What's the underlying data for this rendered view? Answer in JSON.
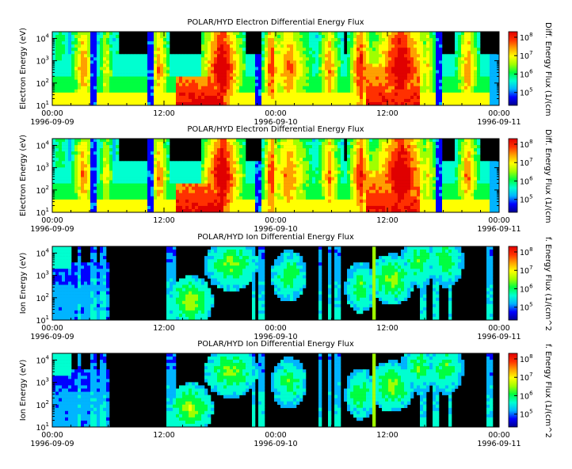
{
  "chart_data": [
    {
      "type": "heatmap",
      "title": "POLAR/HYD  Electron Differential Energy Flux",
      "ylabel": "Electron Energy (eV)",
      "colorbar_label": "Diff. Energy Flux (1/(cm",
      "y_scale": "log",
      "ylim": [
        10,
        20000
      ],
      "y_ticks": [
        {
          "base": "10",
          "exp": "1"
        },
        {
          "base": "10",
          "exp": "2"
        },
        {
          "base": "10",
          "exp": "3"
        },
        {
          "base": "10",
          "exp": "4"
        }
      ],
      "x_ticks": [
        {
          "time": "00:00",
          "date": "1996-09-09"
        },
        {
          "time": "12:00",
          "date": ""
        },
        {
          "time": "00:00",
          "date": "1996-09-10"
        },
        {
          "time": "12:00",
          "date": ""
        },
        {
          "time": "00:00",
          "date": "1996-09-11"
        }
      ],
      "colorbar_ticks": [
        {
          "base": "10",
          "exp": "5"
        },
        {
          "base": "10",
          "exp": "6"
        },
        {
          "base": "10",
          "exp": "7"
        },
        {
          "base": "10",
          "exp": "8"
        }
      ],
      "colorbar_range": [
        20000,
        200000000
      ],
      "colormap": [
        "#00008f",
        "#0000ff",
        "#00b4ff",
        "#00ffd0",
        "#00ff40",
        "#a0ff00",
        "#ffff00",
        "#ffa000",
        "#ff3000",
        "#e00000"
      ]
    },
    {
      "type": "heatmap",
      "title": "POLAR/HYD  Electron Differential Energy Flux",
      "ylabel": "Electron Energy (eV)",
      "colorbar_label": "Diff. Energy Flux (1/(cm",
      "y_scale": "log",
      "ylim": [
        10,
        20000
      ],
      "y_ticks": [
        {
          "base": "10",
          "exp": "1"
        },
        {
          "base": "10",
          "exp": "2"
        },
        {
          "base": "10",
          "exp": "3"
        },
        {
          "base": "10",
          "exp": "4"
        }
      ],
      "x_ticks": [
        {
          "time": "00:00",
          "date": "1996-09-09"
        },
        {
          "time": "12:00",
          "date": ""
        },
        {
          "time": "00:00",
          "date": "1996-09-10"
        },
        {
          "time": "12:00",
          "date": ""
        },
        {
          "time": "00:00",
          "date": "1996-09-11"
        }
      ],
      "colorbar_ticks": [
        {
          "base": "10",
          "exp": "5"
        },
        {
          "base": "10",
          "exp": "6"
        },
        {
          "base": "10",
          "exp": "7"
        },
        {
          "base": "10",
          "exp": "8"
        }
      ],
      "colorbar_range": [
        20000,
        200000000
      ],
      "colormap": [
        "#00008f",
        "#0000ff",
        "#00b4ff",
        "#00ffd0",
        "#00ff40",
        "#a0ff00",
        "#ffff00",
        "#ffa000",
        "#ff3000",
        "#e00000"
      ]
    },
    {
      "type": "heatmap",
      "title": "POLAR/HYD  Ion Differential Energy Flux",
      "ylabel": "Ion Energy (eV)",
      "colorbar_label": "f. Energy Flux (1/(cm^2",
      "y_scale": "log",
      "ylim": [
        10,
        20000
      ],
      "y_ticks": [
        {
          "base": "10",
          "exp": "1"
        },
        {
          "base": "10",
          "exp": "2"
        },
        {
          "base": "10",
          "exp": "3"
        },
        {
          "base": "10",
          "exp": "4"
        }
      ],
      "x_ticks": [
        {
          "time": "00:00",
          "date": "1996-09-09"
        },
        {
          "time": "12:00",
          "date": ""
        },
        {
          "time": "00:00",
          "date": "1996-09-10"
        },
        {
          "time": "12:00",
          "date": ""
        },
        {
          "time": "00:00",
          "date": "1996-09-11"
        }
      ],
      "colorbar_ticks": [
        {
          "base": "10",
          "exp": "5"
        },
        {
          "base": "10",
          "exp": "6"
        },
        {
          "base": "10",
          "exp": "7"
        },
        {
          "base": "10",
          "exp": "8"
        }
      ],
      "colorbar_range": [
        20000,
        200000000
      ],
      "colormap": [
        "#00008f",
        "#0000ff",
        "#00b4ff",
        "#00ffd0",
        "#00ff40",
        "#a0ff00",
        "#ffff00",
        "#ffa000",
        "#ff3000",
        "#e00000"
      ]
    },
    {
      "type": "heatmap",
      "title": "POLAR/HYD  Ion Differential Energy Flux",
      "ylabel": "Ion Energy (eV)",
      "colorbar_label": "f. Energy Flux (1/(cm^2",
      "y_scale": "log",
      "ylim": [
        10,
        20000
      ],
      "y_ticks": [
        {
          "base": "10",
          "exp": "1"
        },
        {
          "base": "10",
          "exp": "2"
        },
        {
          "base": "10",
          "exp": "3"
        },
        {
          "base": "10",
          "exp": "4"
        }
      ],
      "x_ticks": [
        {
          "time": "00:00",
          "date": "1996-09-09"
        },
        {
          "time": "12:00",
          "date": ""
        },
        {
          "time": "00:00",
          "date": "1996-09-10"
        },
        {
          "time": "12:00",
          "date": ""
        },
        {
          "time": "00:00",
          "date": "1996-09-11"
        }
      ],
      "colorbar_ticks": [
        {
          "base": "10",
          "exp": "5"
        },
        {
          "base": "10",
          "exp": "6"
        },
        {
          "base": "10",
          "exp": "7"
        },
        {
          "base": "10",
          "exp": "8"
        }
      ],
      "colorbar_range": [
        20000,
        200000000
      ],
      "colormap": [
        "#00008f",
        "#0000ff",
        "#00b4ff",
        "#00ffd0",
        "#00ff40",
        "#a0ff00",
        "#ffff00",
        "#ffa000",
        "#ff3000",
        "#e00000"
      ]
    }
  ]
}
